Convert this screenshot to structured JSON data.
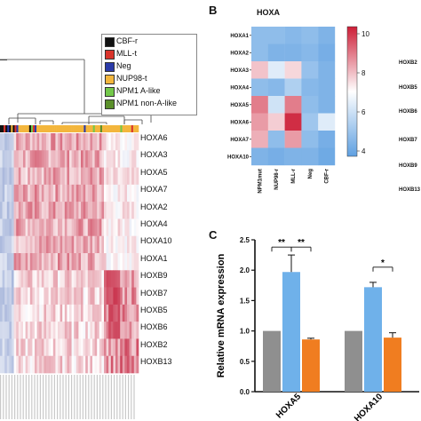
{
  "panels": {
    "b_letter": "B",
    "c_letter": "C"
  },
  "panel_a": {
    "legend": [
      {
        "label": "CBF-r",
        "color": "#111111"
      },
      {
        "label": "MLL-t",
        "color": "#d9342b"
      },
      {
        "label": "Neg",
        "color": "#2a3aa8"
      },
      {
        "label": "NUP98-t",
        "color": "#f3b63d"
      },
      {
        "label": "NPM1 A-like",
        "color": "#73c84a"
      },
      {
        "label": "NPM1 non-A-like",
        "color": "#5a8f2a"
      }
    ],
    "row_labels": [
      "HOXA6",
      "HOXA3",
      "HOXA5",
      "HOXA7",
      "HOXA2",
      "HOXA4",
      "HOXA10",
      "HOXA1",
      "HOXB9",
      "HOXB7",
      "HOXB5",
      "HOXB6",
      "HOXB2",
      "HOXB13"
    ],
    "colors": {
      "high": "#c8304a",
      "mid": "#ffffff",
      "low": "#3f5fb0"
    }
  },
  "panel_b": {
    "title": "HOXA",
    "row_labels": [
      "HOXA1",
      "HOXA2",
      "HOXA3",
      "HOXA4",
      "HOXA5",
      "HOXA6",
      "HOXA7",
      "HOXA10"
    ],
    "col_labels": [
      "NPM1mut",
      "NUP98-r",
      "MLL-r",
      "Neg",
      "CBF-r"
    ],
    "colorbar_ticks": [
      "10",
      "8",
      "6",
      "4"
    ],
    "values": [
      [
        4.6,
        4.6,
        4.5,
        4.6,
        4.4
      ],
      [
        4.6,
        4.4,
        4.4,
        4.5,
        4.3
      ],
      [
        7.2,
        5.6,
        6.8,
        4.7,
        4.4
      ],
      [
        4.6,
        4.5,
        5.0,
        4.5,
        4.4
      ],
      [
        8.6,
        5.4,
        8.6,
        4.6,
        4.4
      ],
      [
        8.0,
        7.0,
        10.2,
        4.8,
        5.6
      ],
      [
        7.6,
        4.6,
        8.0,
        4.6,
        4.3
      ],
      [
        4.4,
        4.3,
        4.4,
        4.4,
        4.2
      ]
    ],
    "right_labels": [
      "HOXB2",
      "HOXB5",
      "HOXB6",
      "HOXB7",
      "HOXB9",
      "HOXB13"
    ]
  },
  "chart_data": {
    "type": "bar",
    "ylabel": "Relative mRNA expression",
    "ylim": [
      0,
      2.5
    ],
    "yticks": [
      "0.0",
      "0.5",
      "1.0",
      "1.5",
      "2.0",
      "2.5"
    ],
    "categories": [
      "HOXA5",
      "HOXA10"
    ],
    "series": [
      {
        "color": "#8f8f8f",
        "values": [
          1.0,
          1.0
        ],
        "errors": [
          0.0,
          0.0
        ]
      },
      {
        "color": "#6fb1ea",
        "values": [
          1.97,
          1.72
        ],
        "errors": [
          0.28,
          0.08
        ]
      },
      {
        "color": "#f07d20",
        "values": [
          0.86,
          0.89
        ],
        "errors": [
          0.02,
          0.08
        ]
      }
    ],
    "significance": [
      {
        "group": 0,
        "from": 0,
        "to": 1,
        "label": "**"
      },
      {
        "group": 0,
        "from": 1,
        "to": 2,
        "label": "**"
      },
      {
        "group": 1,
        "from": 1,
        "to": 2,
        "label": "*"
      }
    ]
  }
}
